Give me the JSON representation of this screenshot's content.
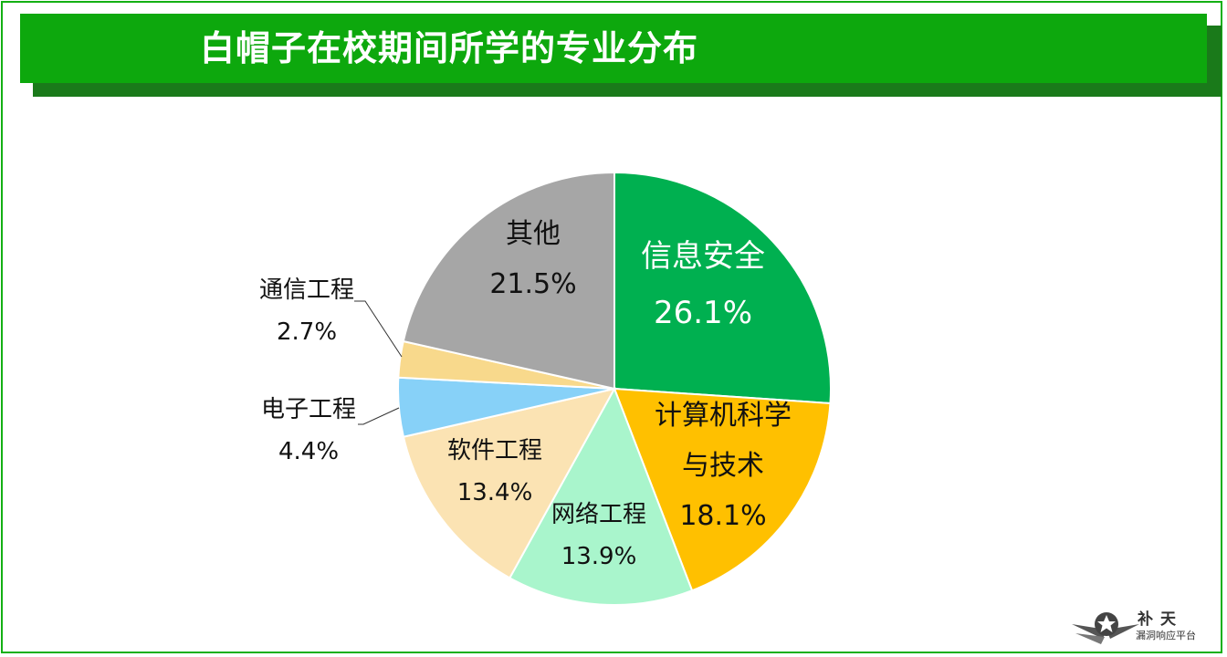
{
  "header": {
    "title": "白帽子在校期间所学的专业分布"
  },
  "chart_data": {
    "type": "pie",
    "title": "白帽子在校期间所学的专业分布",
    "slices": [
      {
        "label": [
          "信息安全"
        ],
        "value": 26.1,
        "value_label": "26.1%",
        "color": "#00b050",
        "text_color": "#ffffff"
      },
      {
        "label": [
          "计算机科学",
          "与技术"
        ],
        "value": 18.1,
        "value_label": "18.1%",
        "color": "#ffc000",
        "text_color": "#111111"
      },
      {
        "label": [
          "网络工程"
        ],
        "value": 13.9,
        "value_label": "13.9%",
        "color": "#a9f5cc",
        "text_color": "#111111"
      },
      {
        "label": [
          "软件工程"
        ],
        "value": 13.4,
        "value_label": "13.4%",
        "color": "#fbe3b3",
        "text_color": "#111111"
      },
      {
        "label": [
          "电子工程"
        ],
        "value": 4.4,
        "value_label": "4.4%",
        "color": "#87d1f8",
        "text_color": "#111111"
      },
      {
        "label": [
          "通信工程"
        ],
        "value": 2.7,
        "value_label": "2.7%",
        "color": "#f8d98c",
        "text_color": "#111111"
      },
      {
        "label": [
          "其他"
        ],
        "value": 21.5,
        "value_label": "21.5%",
        "color": "#a6a6a6",
        "text_color": "#111111"
      }
    ]
  },
  "watermark": {
    "name": "补天",
    "subtitle": "漏洞响应平台"
  }
}
